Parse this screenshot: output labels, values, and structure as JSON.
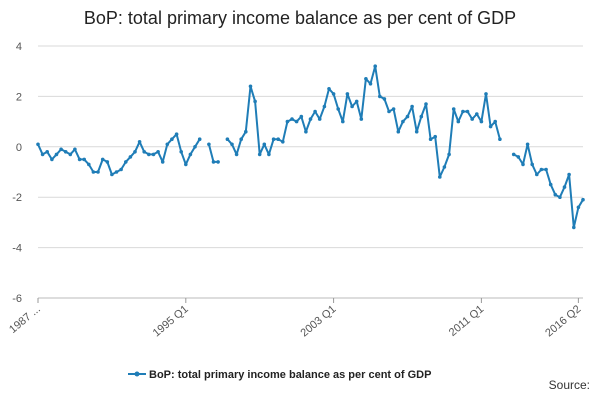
{
  "chart_data": {
    "type": "line",
    "title": "BoP: total primary income balance as per cent of GDP",
    "xlabel": "",
    "ylabel": "",
    "ylim": [
      -6,
      4
    ],
    "yticks": [
      4,
      2,
      0,
      -2,
      -4,
      -6
    ],
    "x_tick_labels": [
      {
        "label": "1987 ...",
        "index": 0
      },
      {
        "label": "1995 Q1",
        "index": 32
      },
      {
        "label": "2003 Q1",
        "index": 64
      },
      {
        "label": "2011 Q1",
        "index": 96
      },
      {
        "label": "2016 Q2",
        "index": 117
      }
    ],
    "grid": true,
    "legend_position": "bottom",
    "series": [
      {
        "name": "BoP: total primary income balance as per cent of GDP",
        "color": "#1f7db7",
        "values": [
          0.1,
          -0.3,
          -0.2,
          -0.5,
          -0.3,
          -0.1,
          -0.2,
          -0.3,
          -0.1,
          -0.5,
          -0.5,
          -0.7,
          -1.0,
          -1.0,
          -0.5,
          -0.6,
          -1.1,
          -1.0,
          -0.9,
          -0.6,
          -0.4,
          -0.2,
          0.2,
          -0.2,
          -0.3,
          -0.3,
          -0.2,
          -0.6,
          0.1,
          0.3,
          0.5,
          -0.2,
          -0.7,
          -0.3,
          0.0,
          0.3,
          null,
          0.1,
          -0.6,
          -0.6,
          null,
          0.3,
          0.1,
          -0.3,
          0.3,
          0.6,
          2.4,
          1.8,
          -0.3,
          0.1,
          -0.3,
          0.3,
          0.3,
          0.2,
          1.0,
          1.1,
          1.0,
          1.2,
          0.6,
          1.1,
          1.4,
          1.1,
          1.6,
          2.3,
          2.1,
          1.5,
          1.0,
          2.1,
          1.6,
          1.8,
          1.1,
          2.7,
          2.5,
          3.2,
          2.0,
          1.9,
          1.4,
          1.5,
          0.6,
          1.0,
          1.2,
          1.6,
          0.6,
          1.2,
          1.7,
          0.3,
          0.4,
          -1.2,
          -0.8,
          -0.3,
          1.5,
          1.0,
          1.4,
          1.4,
          1.1,
          1.3,
          1.0,
          2.1,
          0.8,
          1.0,
          0.3,
          null,
          null,
          -0.3,
          -0.4,
          -0.7,
          0.1,
          -0.7,
          -1.1,
          -0.9,
          -0.9,
          -1.5,
          -1.9,
          -2.0,
          -1.6,
          -1.1,
          -3.2,
          -2.4,
          -2.1
        ]
      }
    ]
  },
  "legend": {
    "label": "BoP: total primary income balance as per cent of GDP"
  },
  "source": {
    "label": "Source:"
  }
}
